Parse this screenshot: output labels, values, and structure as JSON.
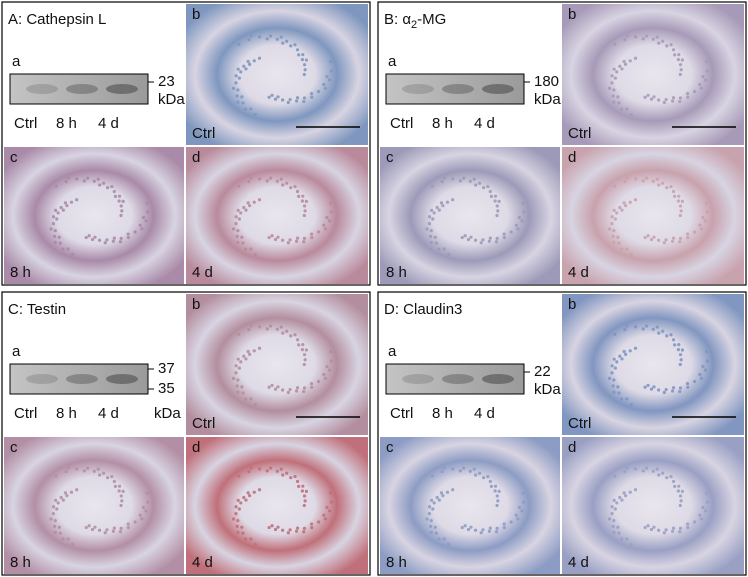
{
  "panels": [
    {
      "title": [
        "A: Cathepsin L"
      ],
      "blot": {
        "label": "a",
        "markers": [
          "23"
        ],
        "unit": "kDa",
        "lanes": [
          "Ctrl",
          "8 h",
          "4 d"
        ]
      },
      "images": [
        {
          "label": "b",
          "caption": "Ctrl",
          "tint": "#7f97bf"
        },
        {
          "label": "c",
          "caption": "8 h",
          "tint": "#a98aa8"
        },
        {
          "label": "d",
          "caption": "4 d",
          "tint": "#b98a9c"
        }
      ]
    },
    {
      "title": [
        "B: α",
        "2",
        "-MG"
      ],
      "title_subscript": true,
      "blot": {
        "label": "a",
        "markers": [
          "180"
        ],
        "unit": "kDa",
        "lanes": [
          "Ctrl",
          "8 h",
          "4 d"
        ]
      },
      "images": [
        {
          "label": "b",
          "caption": "Ctrl",
          "tint": "#a79ab8"
        },
        {
          "label": "c",
          "caption": "8 h",
          "tint": "#9c9ab8"
        },
        {
          "label": "d",
          "caption": "4 d",
          "tint": "#c8a2ad"
        }
      ]
    },
    {
      "title": [
        "C: Testin"
      ],
      "blot": {
        "label": "a",
        "markers": [
          "37",
          "35"
        ],
        "unit": "kDa",
        "lanes": [
          "Ctrl",
          "8 h",
          "4 d"
        ]
      },
      "images": [
        {
          "label": "b",
          "caption": "Ctrl",
          "tint": "#b38e9e"
        },
        {
          "label": "c",
          "caption": "8 h",
          "tint": "#b38fa5"
        },
        {
          "label": "d",
          "caption": "4 d",
          "tint": "#c0707a"
        }
      ]
    },
    {
      "title": [
        "D: Claudin3"
      ],
      "blot": {
        "label": "a",
        "markers": [
          "22"
        ],
        "unit": "kDa",
        "lanes": [
          "Ctrl",
          "8 h",
          "4 d"
        ]
      },
      "images": [
        {
          "label": "b",
          "caption": "Ctrl",
          "tint": "#8196c0"
        },
        {
          "label": "c",
          "caption": "8 h",
          "tint": "#8d9cc4"
        },
        {
          "label": "d",
          "caption": "4 d",
          "tint": "#9aa0c4"
        }
      ]
    }
  ]
}
